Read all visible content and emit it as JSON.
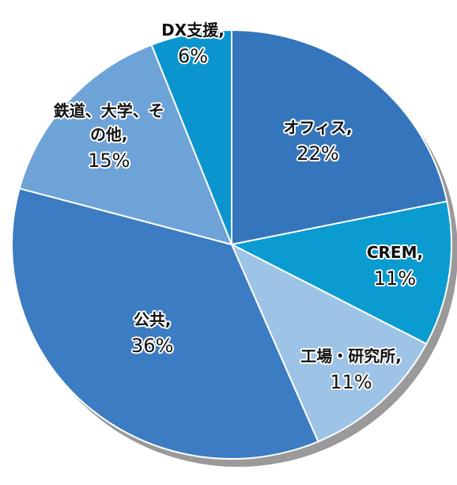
{
  "chart_data": {
    "type": "pie",
    "categories": [
      "オフィス,",
      "CREM,",
      "工場・研究所,",
      "公共,",
      "鉄道、大学、その他,",
      "DX支援,"
    ],
    "values": [
      22,
      11,
      11,
      36,
      15,
      6
    ],
    "value_labels": [
      "22%",
      "11%",
      "11%",
      "36%",
      "15%",
      "6%"
    ],
    "colors": [
      "#3575bb",
      "#0a9bd0",
      "#9dc3e6",
      "#3b7cc2",
      "#6ea3d8",
      "#0b95cf"
    ]
  }
}
